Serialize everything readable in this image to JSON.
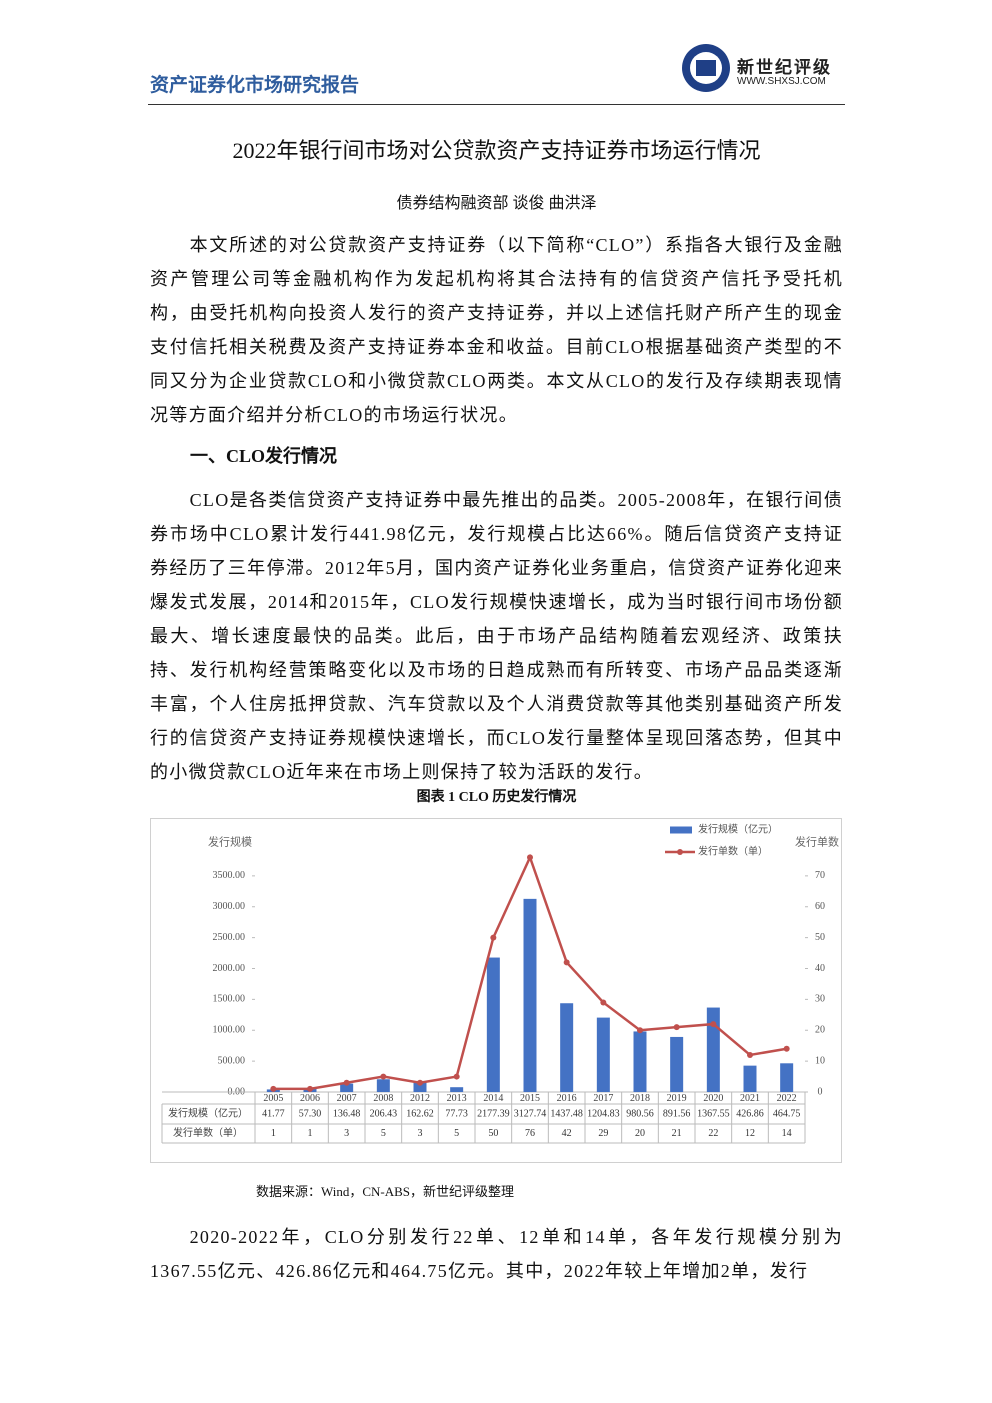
{
  "header": {
    "title": "资产证券化市场研究报告",
    "logo_name": "新世纪评级",
    "logo_url": "WWW.SHXSJ.COM"
  },
  "title": "2022年银行间市场对公贷款资产支持证券市场运行情况",
  "authors": "债券结构融资部 谈俊 曲洪泽",
  "paragraphs": [
    "本文所述的对公贷款资产支持证券（以下简称“CLO”）系指各大银行及金融资产管理公司等金融机构作为发起机构将其合法持有的信贷资产信托予受托机构，由受托机构向投资人发行的资产支持证券，并以上述信托财产所产生的现金支付信托相关税费及资产支持证券本金和收益。目前CLO根据基础资产类型的不同又分为企业贷款CLO和小微贷款CLO两类。本文从CLO的发行及存续期表现情况等方面介绍并分析CLO的市场运行状况。",
    "CLO是各类信贷资产支持证券中最先推出的品类。2005-2008年，在银行间债券市场中CLO累计发行441.98亿元，发行规模占比达66%。随后信贷资产支持证券经历了三年停滞。2012年5月，国内资产证券化业务重启，信贷资产证券化迎来爆发式发展，2014和2015年，CLO发行规模快速增长，成为当时银行间市场份额最大、增长速度最快的品类。此后，由于市场产品结构随着宏观经济、政策扶持、发行机构经营策略变化以及市场的日趋成熟而有所转变、市场产品品类逐渐丰富，个人住房抵押贷款、汽车贷款以及个人消费贷款等其他类别基础资产所发行的信贷资产支持证券规模快速增长，而CLO发行量整体呈现回落态势，但其中的小微贷款CLO近年来在市场上则保持了较为活跃的发行。",
    "2020-2022年，CLO分别发行22单、12单和14单，各年发行规模分别为1367.55亿元、426.86亿元和464.75亿元。其中，2022年较上年增加2单，发行"
  ],
  "section_heading": "一、CLO发行情况",
  "figure_caption": "图表 1 CLO 历史发行情况",
  "source": "数据来源：Wind，CN-ABS，新世纪评级整理",
  "chart_data": {
    "type": "bar",
    "y_label": "发行规模",
    "y2_label": "发行单数",
    "categories": [
      "2005",
      "2006",
      "2007",
      "2008",
      "2012",
      "2013",
      "2014",
      "2015",
      "2016",
      "2017",
      "2018",
      "2019",
      "2020",
      "2021",
      "2022"
    ],
    "series": [
      {
        "name": "发行规模（亿元）",
        "color": "#4472c4",
        "values": [
          41.77,
          57.3,
          136.48,
          206.43,
          162.62,
          77.73,
          2177.39,
          3127.74,
          1437.48,
          1204.83,
          980.56,
          891.56,
          1367.55,
          426.86,
          464.75
        ],
        "value_labels": [
          "41.77",
          "57.30",
          "136.48",
          "206.43",
          "162.62",
          "77.73",
          "2177.39",
          "3127.74",
          "1437.48",
          "1204.83",
          "980.56",
          "891.56",
          "1367.55",
          "426.86",
          "464.75"
        ]
      },
      {
        "name": "发行单数（单）",
        "color": "#c0504d",
        "type": "line",
        "axis": "y2",
        "values": [
          1,
          1,
          3,
          5,
          3,
          5,
          50,
          76,
          42,
          29,
          20,
          21,
          22,
          12,
          14
        ]
      }
    ],
    "ylim": [
      0,
      4000
    ],
    "yticks": [
      {
        "value": 0,
        "label": "0.00"
      },
      {
        "value": 500,
        "label": "500.00"
      },
      {
        "value": 1000,
        "label": "1000.00"
      },
      {
        "value": 1500,
        "label": "1500.00"
      },
      {
        "value": 2000,
        "label": "2000.00"
      },
      {
        "value": 2500,
        "label": "2500.00"
      },
      {
        "value": 3000,
        "label": "3000.00"
      },
      {
        "value": 3500,
        "label": "3500.00"
      }
    ],
    "y2lim": [
      0,
      80
    ],
    "y2ticks": [
      0,
      10,
      20,
      30,
      40,
      50,
      60,
      70
    ],
    "grid": false
  }
}
